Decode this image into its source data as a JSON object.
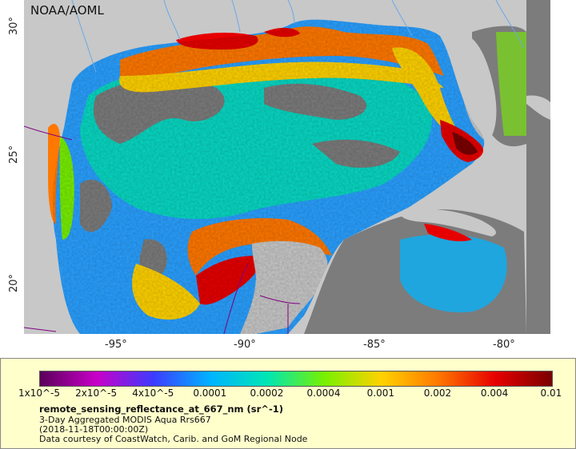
{
  "map": {
    "credit": "NOAA/AOML",
    "lon_ticks": [
      "-95°",
      "-90°",
      "-85°",
      "-80°"
    ],
    "lat_ticks": [
      "30°",
      "25°",
      "20°"
    ]
  },
  "legend": {
    "colorbar_ticks": [
      "1x10^-5",
      "2x10^-5",
      "4x10^-5",
      "0.0001",
      "0.0002",
      "0.0004",
      "0.001",
      "0.002",
      "0.004",
      "0.01"
    ],
    "title": "remote_sensing_reflectance_at_667_nm (sr^-1)",
    "line2": "3-Day Aggregated MODIS Aqua Rrs667",
    "line3": "(2018-11-18T00:00:00Z)",
    "line4": "Data courtesy of CoastWatch, Carib. and GoM Regional Node"
  },
  "colors": {
    "land": "#c8c8c8",
    "no_data": "#7c7c7c",
    "legend_bg": "#ffffcc",
    "colormap": [
      "#5a005a",
      "#c800c8",
      "#3c3cff",
      "#00b4ff",
      "#00e6b4",
      "#78f000",
      "#ffd200",
      "#ff7800",
      "#e60000",
      "#7a0000"
    ]
  }
}
